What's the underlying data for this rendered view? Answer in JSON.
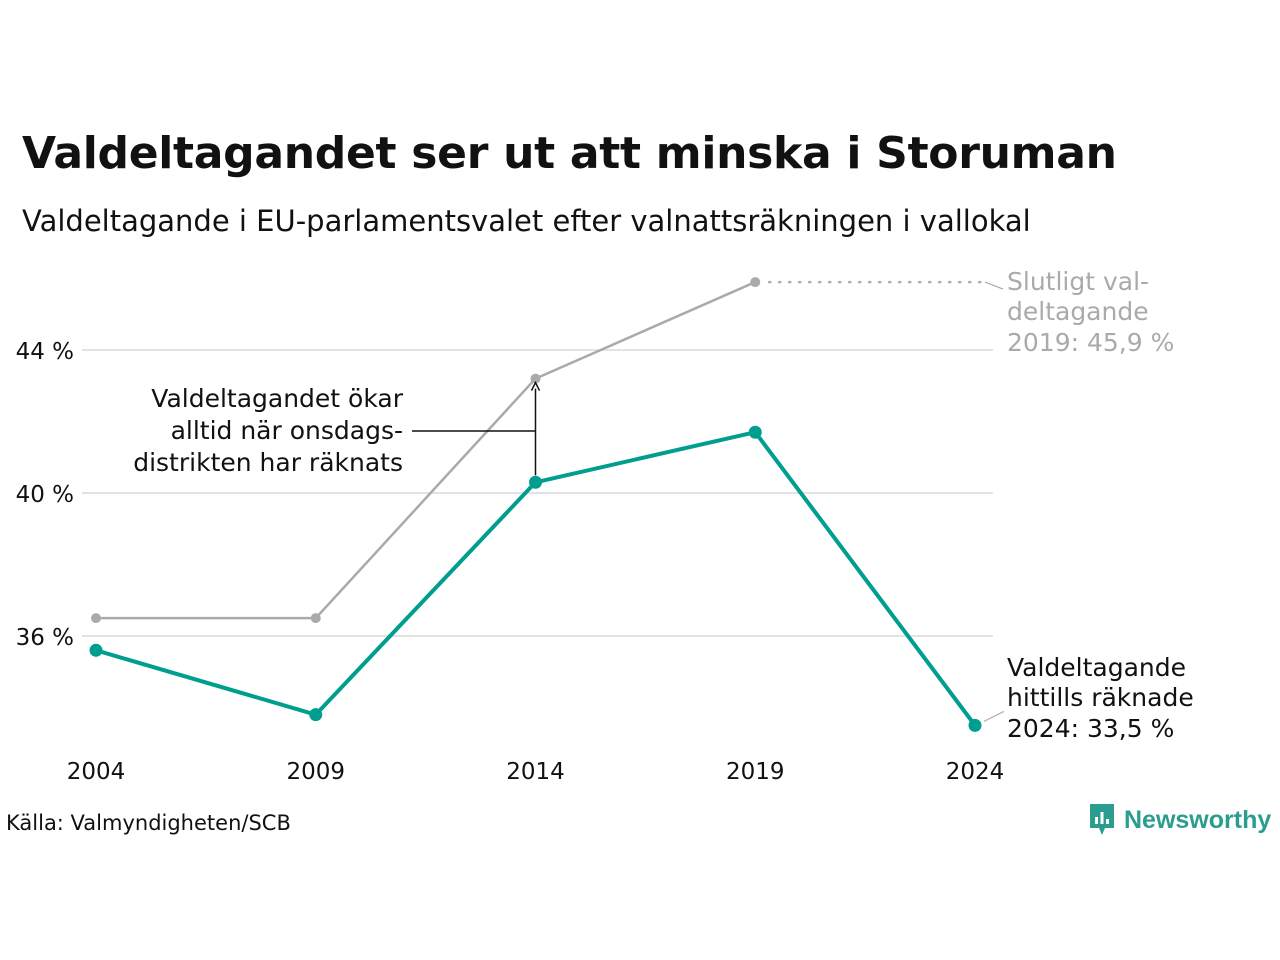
{
  "title": "Valdeltagandet ser ut att minska i Storuman",
  "subtitle": "Valdeltagande i EU-parlamentsvalet efter valnattsräkningen i vallokal",
  "source": "Källa: Valmyndigheten/SCB",
  "brand": "Newsworthy",
  "colors": {
    "primary": "#009e8e",
    "secondary": "#aaaaaa",
    "grid": "#e3e3e3",
    "brand": "#2a9d8f"
  },
  "chart_data": {
    "type": "line",
    "categories": [
      "2004",
      "2009",
      "2014",
      "2019",
      "2024"
    ],
    "x": [
      2004,
      2009,
      2014,
      2019,
      2024
    ],
    "ylim": [
      32.5,
      47.5
    ],
    "yticks": [
      36,
      40,
      44
    ],
    "ytick_labels": [
      "36 %",
      "40 %",
      "44 %"
    ],
    "grid": true,
    "series": [
      {
        "name": "",
        "values": [
          36.5,
          36.5,
          43.2,
          45.9,
          null
        ],
        "color": "#aaaaaa"
      },
      {
        "name": "",
        "values": [
          35.6,
          33.8,
          40.3,
          41.7,
          33.5
        ],
        "color": "#009e8e"
      }
    ],
    "annotations": {
      "final_2019": [
        "Slutligt val-",
        "deltagande",
        "2019: 45,9 %"
      ],
      "counted_2024": [
        "Valdeltagande",
        "hittills räknade",
        "2024: 33,5 %"
      ],
      "wednesday": [
        "Valdeltagandet ökar",
        "alltid när onsdags-",
        "distrikten har räknats"
      ]
    }
  }
}
